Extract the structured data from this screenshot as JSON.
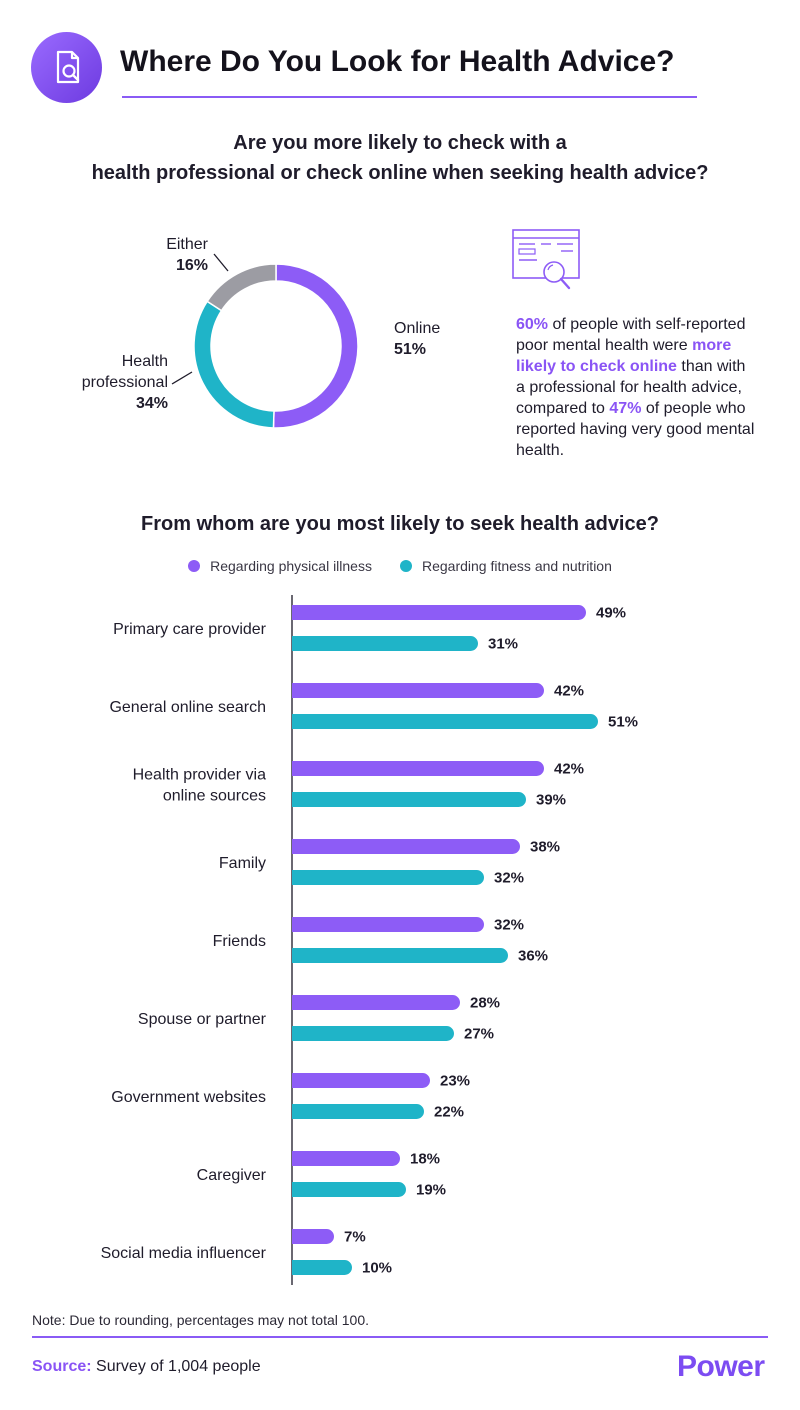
{
  "header": {
    "title": "Where Do You Look for Health Advice?",
    "icon": "magnifier-document-icon"
  },
  "donut_question": {
    "line1": "Are you more likely to check with a",
    "line2": "health professional or check online when seeking health advice?"
  },
  "callout": {
    "icon": "browser-search-icon",
    "pct1": "60%",
    "text1": " of people with self-reported poor mental health were ",
    "emphasis": "more likely to check online",
    "text2": " than with a professional for health advice, compared to ",
    "pct2": "47%",
    "text3": " of people who reported having very good mental health."
  },
  "bar_question": "From whom are you most likely to seek health advice?",
  "colors": {
    "purple": "#8d5cf6",
    "teal": "#1fb4c8",
    "gray": "#9c9ca3",
    "accent": "#8a54f5"
  },
  "chart_data": [
    {
      "type": "pie",
      "title": "Are you more likely to check with a health professional or check online when seeking health advice?",
      "labels": [
        {
          "name": "Online",
          "pct_label": "51%"
        },
        {
          "name": "Either",
          "pct_label": "16%"
        },
        {
          "name_line1": "Health",
          "name_line2": "professional",
          "pct_label": "34%"
        }
      ],
      "slices": [
        {
          "name": "Online",
          "value": 51,
          "color": "#8d5cf6"
        },
        {
          "name": "Health professional",
          "value": 34,
          "color": "#1fb4c8"
        },
        {
          "name": "Either",
          "value": 16,
          "color": "#9c9ca3"
        }
      ]
    },
    {
      "type": "bar",
      "orientation": "horizontal",
      "title": "From whom are you most likely to seek health advice?",
      "categories": [
        {
          "lines": [
            "Primary care provider"
          ]
        },
        {
          "lines": [
            "General online search"
          ]
        },
        {
          "lines": [
            "Health provider via",
            "online sources"
          ]
        },
        {
          "lines": [
            "Family"
          ]
        },
        {
          "lines": [
            "Friends"
          ]
        },
        {
          "lines": [
            "Spouse or partner"
          ]
        },
        {
          "lines": [
            "Government websites"
          ]
        },
        {
          "lines": [
            "Caregiver"
          ]
        },
        {
          "lines": [
            "Social media influencer"
          ]
        }
      ],
      "series": [
        {
          "name": "Regarding physical illness",
          "color": "#8d5cf6",
          "values": [
            49,
            42,
            42,
            38,
            32,
            28,
            23,
            18,
            7
          ]
        },
        {
          "name": "Regarding fitness and nutrition",
          "color": "#1fb4c8",
          "values": [
            31,
            51,
            39,
            32,
            36,
            27,
            22,
            19,
            10
          ]
        }
      ],
      "value_suffix": "%",
      "xlim": [
        0,
        51
      ],
      "legend_position": "top"
    }
  ],
  "note": "Note: Due to rounding, percentages may not total 100.",
  "source": {
    "label": "Source:",
    "text": " Survey of 1,004 people"
  },
  "brand": "Power"
}
